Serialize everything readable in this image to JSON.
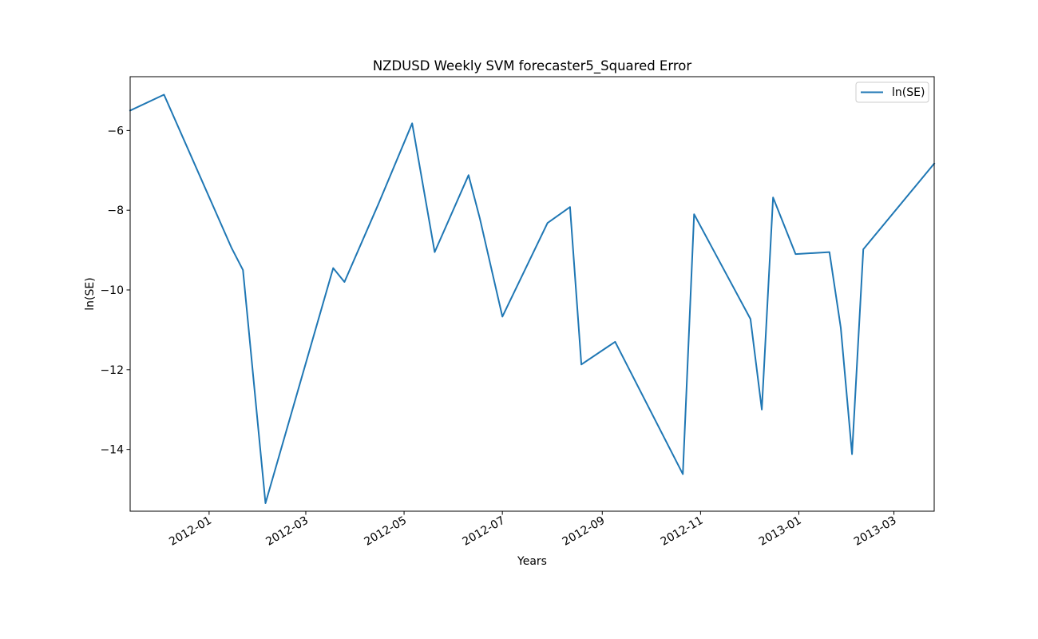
{
  "chart_data": {
    "type": "line",
    "title": "NZDUSD Weekly SVM forecaster5_Squared Error",
    "xlabel": "Years",
    "ylabel": "ln(SE)",
    "x_range": [
      "2011-11-13",
      "2013-03-26"
    ],
    "ylim": [
      -15.55,
      -4.65
    ],
    "y_ticks": [
      -14,
      -12,
      -10,
      -8,
      -6
    ],
    "y_tick_labels": [
      "−14",
      "−12",
      "−10",
      "−8",
      "−6"
    ],
    "x_ticks": [
      "2012-01-01",
      "2012-03-01",
      "2012-05-01",
      "2012-07-01",
      "2012-09-01",
      "2012-11-01",
      "2013-01-01",
      "2013-03-01"
    ],
    "x_tick_labels": [
      "2012-01",
      "2012-03",
      "2012-05",
      "2012-07",
      "2012-09",
      "2012-11",
      "2013-01",
      "2013-03"
    ],
    "grid": false,
    "legend_position": "upper right",
    "series": [
      {
        "name": "ln(SE)",
        "color": "#1f77b4",
        "x": [
          "2011-11-13",
          "2011-12-04",
          "2012-01-15",
          "2012-01-22",
          "2012-02-05",
          "2012-03-18",
          "2012-03-25",
          "2012-04-15",
          "2012-05-06",
          "2012-05-20",
          "2012-06-10",
          "2012-06-17",
          "2012-07-01",
          "2012-07-29",
          "2012-08-12",
          "2012-08-19",
          "2012-09-09",
          "2012-10-21",
          "2012-10-28",
          "2012-12-02",
          "2012-12-09",
          "2012-12-16",
          "2012-12-30",
          "2013-01-20",
          "2013-01-27",
          "2013-02-03",
          "2013-02-10",
          "2013-03-26"
        ],
        "y": [
          -5.5,
          -5.1,
          -8.95,
          -9.5,
          -15.35,
          -9.45,
          -9.8,
          -7.85,
          -5.82,
          -9.05,
          -7.12,
          -8.2,
          -10.67,
          -8.32,
          -7.92,
          -11.87,
          -11.3,
          -14.62,
          -8.1,
          -10.73,
          -13.0,
          -7.68,
          -9.1,
          -9.05,
          -10.95,
          -14.12,
          -8.98,
          -6.83
        ]
      }
    ]
  }
}
